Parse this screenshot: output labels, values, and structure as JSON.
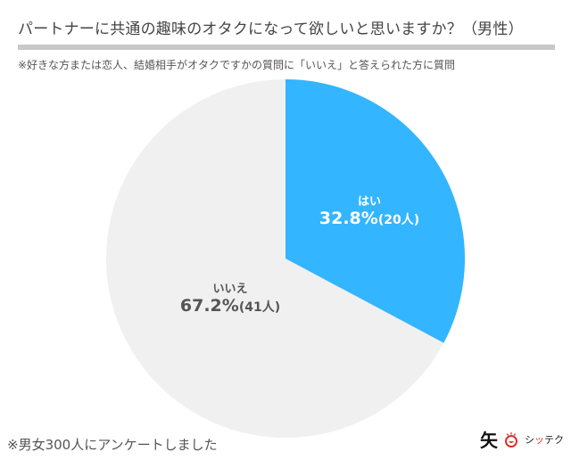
{
  "header": {
    "title": "パートナーに共通の趣味のオタクになって欲しいと思いますか？（男性）",
    "note": "※好きな方または恋人、結婚相手がオタクですかの質問に「いいえ」と答えられた方に質問"
  },
  "labels": {
    "yes": {
      "category": "はい",
      "percent": "32.8%",
      "count": "(20人)"
    },
    "no": {
      "category": "いいえ",
      "percent": "67.2%",
      "count": "(41人)"
    }
  },
  "footer": {
    "note": "※男女300人にアンケートしました"
  },
  "logo": {
    "kanji": "矢",
    "text_a": "シ",
    "text_red": "ッ",
    "text_b": "テク"
  },
  "colors": {
    "yes": "#33b5ff",
    "no": "#f0f0f0",
    "title": "#444444",
    "rule": "#c8c8c8"
  },
  "chart_data": {
    "type": "pie",
    "title": "パートナーに共通の趣味のオタクになって欲しいと思いますか？（男性）",
    "subtitle": "※好きな方または恋人、結婚相手がオタクですかの質問に「いいえ」と答えられた方に質問",
    "categories": [
      "はい",
      "いいえ"
    ],
    "values": [
      32.8,
      67.2
    ],
    "counts": [
      20,
      41
    ],
    "unit": "%",
    "colors": [
      "#33b5ff",
      "#f0f0f0"
    ],
    "start_angle": "12 o'clock, clockwise",
    "annotation": "※男女300人にアンケートしました"
  }
}
